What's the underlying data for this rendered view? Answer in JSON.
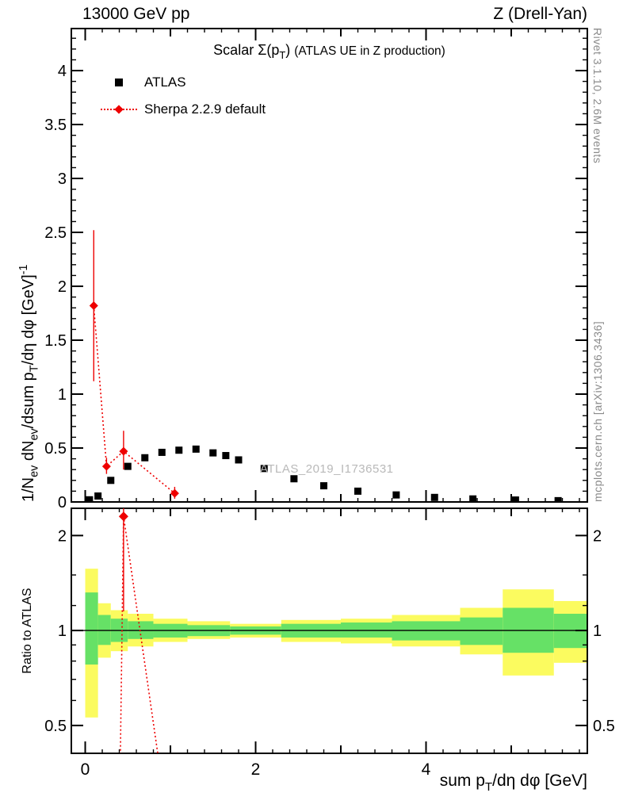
{
  "header": {
    "left": "13000 GeV pp",
    "right": "Z (Drell-Yan)"
  },
  "side_notes": {
    "rivet": "Rivet 3.1.10,  2.6M events",
    "mcplots": "mcplots.cern.ch [arXiv:1306.3436]"
  },
  "watermark": "ATLAS_2019_I1736531",
  "labels": {
    "title_rich": [
      {
        "t": "Scalar Σ(p"
      },
      {
        "t": "T",
        "s": "sub"
      },
      {
        "t": ")  "
      },
      {
        "t": "(ATLAS UE in Z production)",
        "s": "small"
      }
    ],
    "ylabel_rich": [
      {
        "t": "1/N"
      },
      {
        "t": "ev",
        "s": "sub"
      },
      {
        "t": " dN"
      },
      {
        "t": "ev",
        "s": "sub"
      },
      {
        "t": "/dsum p"
      },
      {
        "t": "T",
        "s": "sub"
      },
      {
        "t": "/dη dφ  [GeV]"
      },
      {
        "t": "-1",
        "s": "sup"
      }
    ],
    "xlabel_rich": [
      {
        "t": "sum p"
      },
      {
        "t": "T",
        "s": "sub"
      },
      {
        "t": "/dη dφ [GeV]"
      }
    ],
    "ratio_ylabel": "Ratio to ATLAS"
  },
  "legend": {
    "items": [
      {
        "label": "ATLAS",
        "marker": "square-icon"
      },
      {
        "label": "Sherpa 2.2.9 default",
        "marker": "diamond-dotted-line-icon"
      }
    ]
  },
  "colors": {
    "red": "#ee0000",
    "yellow_band": "#fbfb5f",
    "green_band": "#66e166",
    "gray": "#8a8a8a",
    "watermark": "#b9b9b9"
  },
  "chart_data": {
    "type": "scatter",
    "title": "Scalar Σ(pT) (ATLAS UE in Z production)",
    "xlabel": "sum pT/dη dφ [GeV]",
    "ylabel": "1/Nev dNev/dsum pT/dη dφ [GeV]^-1",
    "ratio_ylabel": "Ratio to ATLAS",
    "xlim": [
      -0.163,
      5.893
    ],
    "main_ylim": [
      0,
      4.39
    ],
    "ratio_ylim": [
      0.408,
      2.44
    ],
    "ratio_yscale": "log",
    "grid": false,
    "legend_position": "top-left-inside",
    "x_ticks": {
      "major": [
        [
          0,
          "0"
        ],
        [
          2,
          "2"
        ],
        [
          4,
          "4"
        ]
      ],
      "mid": [
        1,
        3,
        5
      ],
      "minor_step": 0.2
    },
    "main_yticks": {
      "major": [
        [
          0,
          "0"
        ],
        [
          0.5,
          "0.5"
        ],
        [
          1,
          "1"
        ],
        [
          1.5,
          "1.5"
        ],
        [
          2,
          "2"
        ],
        [
          2.5,
          "2.5"
        ],
        [
          3,
          "3"
        ],
        [
          3.5,
          "3.5"
        ],
        [
          4,
          "4"
        ]
      ],
      "minor_step": 0.1
    },
    "ratio_yticks": {
      "major": [
        [
          0.5,
          "0.5"
        ],
        [
          1,
          "1"
        ],
        [
          2,
          "2"
        ]
      ],
      "minor": [
        0.6,
        0.7,
        0.8,
        0.9,
        1.2,
        1.5
      ]
    },
    "series": [
      {
        "name": "ATLAS",
        "marker": "square",
        "color": "#000000",
        "points": [
          [
            0.05,
            0.02
          ],
          [
            0.15,
            0.055
          ],
          [
            0.3,
            0.2
          ],
          [
            0.5,
            0.33
          ],
          [
            0.7,
            0.41
          ],
          [
            0.9,
            0.46
          ],
          [
            1.1,
            0.48
          ],
          [
            1.3,
            0.49
          ],
          [
            1.5,
            0.455
          ],
          [
            1.65,
            0.43
          ],
          [
            1.8,
            0.39
          ],
          [
            2.1,
            0.31
          ],
          [
            2.45,
            0.215
          ],
          [
            2.8,
            0.15
          ],
          [
            3.2,
            0.1
          ],
          [
            3.65,
            0.065
          ],
          [
            4.1,
            0.042
          ],
          [
            4.55,
            0.028
          ],
          [
            5.05,
            0.018
          ],
          [
            5.55,
            0.012
          ]
        ]
      },
      {
        "name": "Sherpa 2.2.9 default",
        "marker": "diamond",
        "line": "dotted",
        "color": "#ee0000",
        "points": [
          [
            0.1,
            1.82
          ],
          [
            0.25,
            0.33
          ],
          [
            0.45,
            0.47
          ],
          [
            1.05,
            0.08
          ]
        ],
        "yerr": [
          [
            1.12,
            2.52
          ],
          [
            0.26,
            0.41
          ],
          [
            0.3,
            0.66
          ],
          [
            0.03,
            0.14
          ]
        ]
      }
    ],
    "ratio": {
      "unit_line": 1,
      "line_points": [
        [
          0.41,
          0.36
        ],
        [
          0.45,
          2.3
        ],
        [
          0.88,
          0.36
        ]
      ],
      "marker_point": [
        0.45,
        2.3
      ],
      "marker_err": [
        1.15,
        3.0
      ],
      "bands": [
        {
          "x0": 0.0,
          "x1": 0.15,
          "yellow": [
            0.53,
            1.57
          ],
          "green": [
            0.78,
            1.32
          ]
        },
        {
          "x0": 0.15,
          "x1": 0.3,
          "yellow": [
            0.82,
            1.22
          ],
          "green": [
            0.9,
            1.12
          ]
        },
        {
          "x0": 0.3,
          "x1": 0.5,
          "yellow": [
            0.86,
            1.16
          ],
          "green": [
            0.92,
            1.09
          ]
        },
        {
          "x0": 0.5,
          "x1": 0.8,
          "yellow": [
            0.89,
            1.13
          ],
          "green": [
            0.94,
            1.07
          ]
        },
        {
          "x0": 0.8,
          "x1": 1.2,
          "yellow": [
            0.92,
            1.09
          ],
          "green": [
            0.95,
            1.05
          ]
        },
        {
          "x0": 1.2,
          "x1": 1.7,
          "yellow": [
            0.94,
            1.07
          ],
          "green": [
            0.96,
            1.04
          ]
        },
        {
          "x0": 1.7,
          "x1": 2.3,
          "yellow": [
            0.95,
            1.05
          ],
          "green": [
            0.97,
            1.03
          ]
        },
        {
          "x0": 2.3,
          "x1": 3.0,
          "yellow": [
            0.92,
            1.08
          ],
          "green": [
            0.95,
            1.05
          ]
        },
        {
          "x0": 3.0,
          "x1": 3.6,
          "yellow": [
            0.91,
            1.09
          ],
          "green": [
            0.95,
            1.06
          ]
        },
        {
          "x0": 3.6,
          "x1": 4.4,
          "yellow": [
            0.89,
            1.12
          ],
          "green": [
            0.93,
            1.07
          ]
        },
        {
          "x0": 4.4,
          "x1": 4.9,
          "yellow": [
            0.84,
            1.18
          ],
          "green": [
            0.9,
            1.1
          ]
        },
        {
          "x0": 4.9,
          "x1": 5.5,
          "yellow": [
            0.72,
            1.35
          ],
          "green": [
            0.85,
            1.18
          ]
        },
        {
          "x0": 5.5,
          "x1": 5.89,
          "yellow": [
            0.79,
            1.24
          ],
          "green": [
            0.88,
            1.13
          ]
        }
      ]
    }
  }
}
